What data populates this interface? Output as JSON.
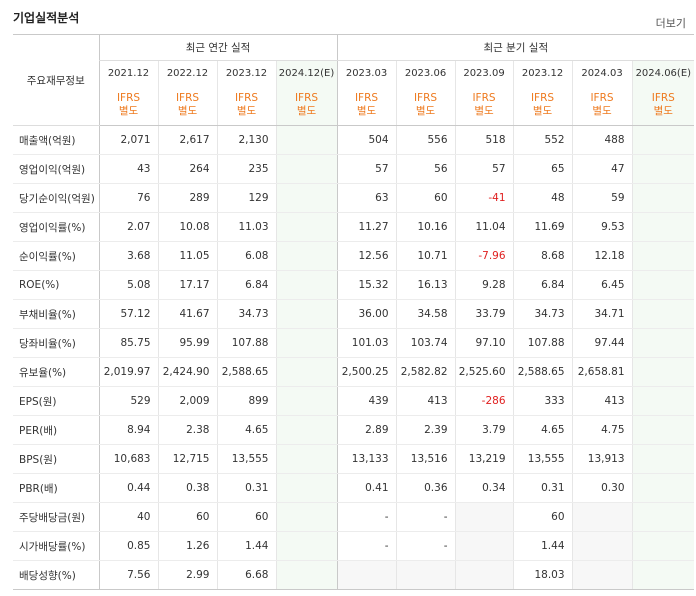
{
  "header": {
    "title": "기업실적분석",
    "more": "더보기"
  },
  "table": {
    "corner_label": "주요재무정보",
    "annual_group_label": "최근 연간 실적",
    "quarter_group_label": "최근 분기 실적",
    "annual_periods": [
      "2021.12",
      "2022.12",
      "2023.12",
      "2024.12(E)"
    ],
    "quarter_periods": [
      "2023.03",
      "2023.06",
      "2023.09",
      "2023.12",
      "2024.03",
      "2024.06(E)"
    ],
    "ifrs_line1": "IFRS",
    "ifrs_line2": "별도",
    "rows": [
      {
        "label": "매출액(억원)",
        "values": [
          "2,071",
          "2,617",
          "2,130",
          "",
          "504",
          "556",
          "518",
          "552",
          "488",
          ""
        ]
      },
      {
        "label": "영업이익(억원)",
        "values": [
          "43",
          "264",
          "235",
          "",
          "57",
          "56",
          "57",
          "65",
          "47",
          ""
        ]
      },
      {
        "label": "당기순이익(억원)",
        "values": [
          "76",
          "289",
          "129",
          "",
          "63",
          "60",
          "-41",
          "48",
          "59",
          ""
        ]
      },
      {
        "label": "영업이익률(%)",
        "values": [
          "2.07",
          "10.08",
          "11.03",
          "",
          "11.27",
          "10.16",
          "11.04",
          "11.69",
          "9.53",
          ""
        ]
      },
      {
        "label": "순이익률(%)",
        "values": [
          "3.68",
          "11.05",
          "6.08",
          "",
          "12.56",
          "10.71",
          "-7.96",
          "8.68",
          "12.18",
          ""
        ]
      },
      {
        "label": "ROE(%)",
        "values": [
          "5.08",
          "17.17",
          "6.84",
          "",
          "15.32",
          "16.13",
          "9.28",
          "6.84",
          "6.45",
          ""
        ]
      },
      {
        "label": "부채비율(%)",
        "values": [
          "57.12",
          "41.67",
          "34.73",
          "",
          "36.00",
          "34.58",
          "33.79",
          "34.73",
          "34.71",
          ""
        ]
      },
      {
        "label": "당좌비율(%)",
        "values": [
          "85.75",
          "95.99",
          "107.88",
          "",
          "101.03",
          "103.74",
          "97.10",
          "107.88",
          "97.44",
          ""
        ]
      },
      {
        "label": "유보율(%)",
        "values": [
          "2,019.97",
          "2,424.90",
          "2,588.65",
          "",
          "2,500.25",
          "2,582.82",
          "2,525.60",
          "2,588.65",
          "2,658.81",
          ""
        ]
      },
      {
        "label": "EPS(원)",
        "values": [
          "529",
          "2,009",
          "899",
          "",
          "439",
          "413",
          "-286",
          "333",
          "413",
          ""
        ]
      },
      {
        "label": "PER(배)",
        "values": [
          "8.94",
          "2.38",
          "4.65",
          "",
          "2.89",
          "2.39",
          "3.79",
          "4.65",
          "4.75",
          ""
        ]
      },
      {
        "label": "BPS(원)",
        "values": [
          "10,683",
          "12,715",
          "13,555",
          "",
          "13,133",
          "13,516",
          "13,219",
          "13,555",
          "13,913",
          ""
        ]
      },
      {
        "label": "PBR(배)",
        "values": [
          "0.44",
          "0.38",
          "0.31",
          "",
          "0.41",
          "0.36",
          "0.34",
          "0.31",
          "0.30",
          ""
        ]
      },
      {
        "label": "주당배당금(원)",
        "values": [
          "40",
          "60",
          "60",
          "",
          "-",
          "-",
          "",
          "60",
          "",
          ""
        ]
      },
      {
        "label": "시가배당률(%)",
        "values": [
          "0.85",
          "1.26",
          "1.44",
          "",
          "-",
          "-",
          "",
          "1.44",
          "",
          ""
        ]
      },
      {
        "label": "배당성향(%)",
        "values": [
          "7.56",
          "2.99",
          "6.68",
          "",
          "",
          "",
          "",
          "18.03",
          "",
          ""
        ]
      }
    ]
  }
}
